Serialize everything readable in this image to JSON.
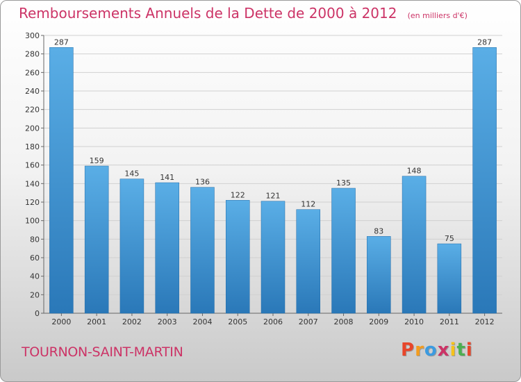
{
  "chart_data": {
    "type": "bar",
    "title": "Remboursements Annuels de la Dette de 2000 à 2012",
    "subtitle": "(en milliers d'€)",
    "categories": [
      "2000",
      "2001",
      "2002",
      "2003",
      "2004",
      "2005",
      "2006",
      "2007",
      "2008",
      "2009",
      "2010",
      "2011",
      "2012"
    ],
    "values": [
      287,
      159,
      145,
      141,
      136,
      122,
      121,
      112,
      135,
      83,
      148,
      75,
      287
    ],
    "ylim": [
      0,
      300
    ],
    "yticks": [
      0,
      20,
      40,
      60,
      80,
      100,
      120,
      140,
      160,
      180,
      200,
      220,
      240,
      260,
      280,
      300
    ],
    "grid": true,
    "xlabel": "",
    "ylabel": "",
    "colors": {
      "bar_top": "#5aaee6",
      "bar_bottom": "#2a78b8",
      "bar_edge": "#1f6aa8",
      "grid": "#d0d0d0",
      "axis": "#666666",
      "label": "#333333"
    }
  },
  "footer": {
    "town": "TOURNON-SAINT-MARTIN",
    "logo": [
      "P",
      "r",
      "o",
      "x",
      "i",
      "t",
      "i"
    ],
    "logo_colors": [
      "#e8462a",
      "#f39c1f",
      "#3c9be0",
      "#cc3366",
      "#f5c21b",
      "#4caf50",
      "#e8462a"
    ]
  }
}
